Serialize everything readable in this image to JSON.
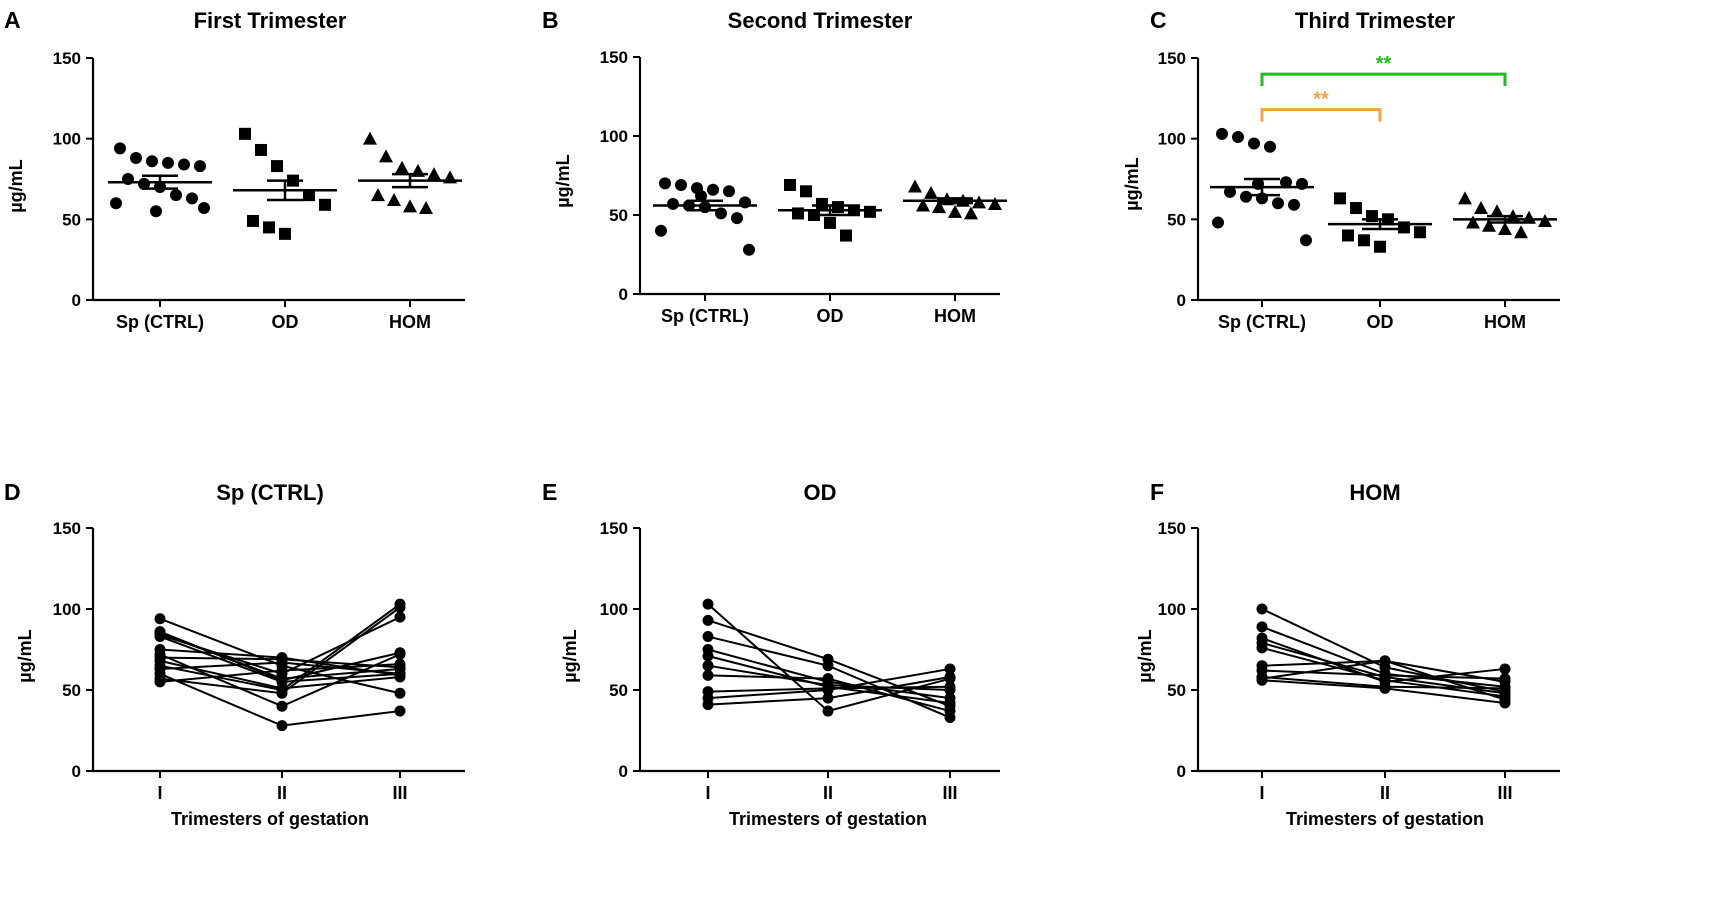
{
  "chart_data": [
    {
      "panel": "A",
      "type": "scatter",
      "title": "First Trimester",
      "ylabel": "µg/mL",
      "xlabel": "",
      "ylim": [
        0,
        150
      ],
      "yticks": [
        0,
        50,
        100,
        150
      ],
      "categories": [
        "Sp (CTRL)",
        "OD",
        "HOM"
      ],
      "series": [
        {
          "name": "Sp (CTRL)",
          "marker": "circle",
          "mean": 73,
          "sem": 4,
          "values": [
            94,
            88,
            86,
            85,
            84,
            83,
            75,
            72,
            70,
            65,
            63,
            60,
            57,
            55
          ]
        },
        {
          "name": "OD",
          "marker": "square",
          "mean": 68,
          "sem": 6,
          "values": [
            103,
            93,
            83,
            74,
            65,
            59,
            49,
            45,
            41
          ]
        },
        {
          "name": "HOM",
          "marker": "triangle",
          "mean": 74,
          "sem": 4,
          "values": [
            100,
            89,
            82,
            80,
            78,
            76,
            65,
            62,
            58,
            57
          ]
        }
      ],
      "significance": []
    },
    {
      "panel": "B",
      "type": "scatter",
      "title": "Second Trimester",
      "ylabel": "µg/mL",
      "xlabel": "",
      "ylim": [
        0,
        150
      ],
      "yticks": [
        0,
        50,
        100,
        150
      ],
      "categories": [
        "Sp (CTRL)",
        "OD",
        "HOM"
      ],
      "series": [
        {
          "name": "Sp (CTRL)",
          "marker": "circle",
          "mean": 56,
          "sem": 3,
          "values": [
            70,
            69,
            67,
            66,
            65,
            58,
            57,
            56,
            55,
            51,
            48,
            40,
            28,
            62
          ]
        },
        {
          "name": "OD",
          "marker": "square",
          "mean": 53,
          "sem": 3,
          "values": [
            69,
            65,
            57,
            55,
            53,
            52,
            51,
            50,
            45,
            37
          ]
        },
        {
          "name": "HOM",
          "marker": "triangle",
          "mean": 59,
          "sem": 1.5,
          "values": [
            68,
            64,
            60,
            59,
            58,
            57,
            56,
            55,
            52,
            51
          ]
        }
      ],
      "significance": []
    },
    {
      "panel": "C",
      "type": "scatter",
      "title": "Third Trimester",
      "ylabel": "µg/mL",
      "xlabel": "",
      "ylim": [
        0,
        150
      ],
      "yticks": [
        0,
        50,
        100,
        150
      ],
      "categories": [
        "Sp (CTRL)",
        "OD",
        "HOM"
      ],
      "series": [
        {
          "name": "Sp (CTRL)",
          "marker": "circle",
          "mean": 70,
          "sem": 5,
          "values": [
            103,
            101,
            97,
            95,
            73,
            72,
            67,
            64,
            63,
            60,
            59,
            48,
            37,
            72
          ]
        },
        {
          "name": "OD",
          "marker": "square",
          "mean": 47,
          "sem": 3,
          "values": [
            63,
            57,
            52,
            50,
            45,
            42,
            40,
            37,
            33
          ]
        },
        {
          "name": "HOM",
          "marker": "triangle",
          "mean": 50,
          "sem": 2,
          "values": [
            63,
            57,
            55,
            52,
            51,
            49,
            48,
            46,
            44,
            42
          ]
        }
      ],
      "significance": [
        {
          "from": "Sp (CTRL)",
          "to": "OD",
          "label": "**",
          "color": "#f5a442",
          "level": 118
        },
        {
          "from": "Sp (CTRL)",
          "to": "HOM",
          "label": "**",
          "color": "#22bb22",
          "level": 140
        }
      ]
    },
    {
      "panel": "D",
      "type": "line",
      "title": "Sp (CTRL)",
      "ylabel": "µg/mL",
      "xlabel": "Trimesters of gestation",
      "ylim": [
        0,
        150
      ],
      "yticks": [
        0,
        50,
        100,
        150
      ],
      "x": [
        "I",
        "II",
        "III"
      ],
      "series": [
        {
          "values": [
            94,
            65,
            48
          ]
        },
        {
          "values": [
            85,
            57,
            63
          ]
        },
        {
          "values": [
            84,
            60,
            95
          ]
        },
        {
          "values": [
            83,
            55,
            60
          ]
        },
        {
          "values": [
            75,
            70,
            59
          ]
        },
        {
          "values": [
            72,
            40,
            72
          ]
        },
        {
          "values": [
            70,
            69,
            64
          ]
        },
        {
          "values": [
            65,
            50,
            103
          ]
        },
        {
          "values": [
            63,
            67,
            60
          ]
        },
        {
          "values": [
            60,
            28,
            37
          ]
        },
        {
          "values": [
            57,
            48,
            101
          ]
        },
        {
          "values": [
            55,
            62,
            66
          ]
        },
        {
          "values": [
            86,
            56,
            73
          ]
        },
        {
          "values": [
            68,
            51,
            58
          ]
        }
      ]
    },
    {
      "panel": "E",
      "type": "line",
      "title": "OD",
      "ylabel": "µg/mL",
      "xlabel": "Trimesters of gestation",
      "ylim": [
        0,
        150
      ],
      "yticks": [
        0,
        50,
        100,
        150
      ],
      "x": [
        "I",
        "II",
        "III"
      ],
      "series": [
        {
          "values": [
            103,
            37,
            57
          ]
        },
        {
          "values": [
            93,
            69,
            40
          ]
        },
        {
          "values": [
            83,
            65,
            33
          ]
        },
        {
          "values": [
            75,
            55,
            45
          ]
        },
        {
          "values": [
            71,
            52,
            42
          ]
        },
        {
          "values": [
            65,
            53,
            50
          ]
        },
        {
          "values": [
            59,
            57,
            37
          ]
        },
        {
          "values": [
            49,
            51,
            52
          ]
        },
        {
          "values": [
            45,
            50,
            63
          ]
        },
        {
          "values": [
            41,
            45,
            58
          ]
        }
      ]
    },
    {
      "panel": "F",
      "type": "line",
      "title": "HOM",
      "ylabel": "µg/mL",
      "xlabel": "Trimesters of gestation",
      "ylim": [
        0,
        150
      ],
      "yticks": [
        0,
        50,
        100,
        150
      ],
      "x": [
        "I",
        "II",
        "III"
      ],
      "series": [
        {
          "values": [
            100,
            64,
            49
          ]
        },
        {
          "values": [
            89,
            60,
            52
          ]
        },
        {
          "values": [
            82,
            55,
            63
          ]
        },
        {
          "values": [
            79,
            58,
            48
          ]
        },
        {
          "values": [
            76,
            56,
            46
          ]
        },
        {
          "values": [
            65,
            68,
            44
          ]
        },
        {
          "values": [
            62,
            59,
            57
          ]
        },
        {
          "values": [
            58,
            52,
            51
          ]
        },
        {
          "values": [
            57,
            68,
            55
          ]
        },
        {
          "values": [
            56,
            51,
            42
          ]
        }
      ]
    }
  ]
}
